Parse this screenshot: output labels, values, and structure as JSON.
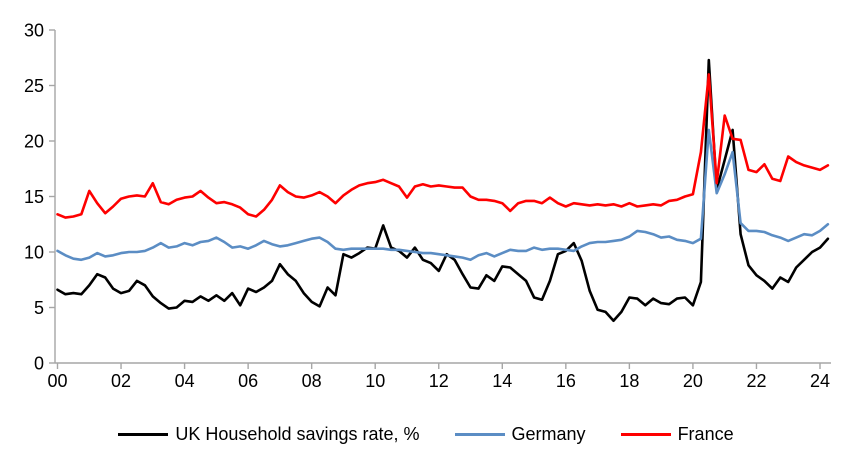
{
  "chart_data": {
    "type": "line",
    "x_start_year": 2000,
    "x_step_years": 0.25,
    "x_tick_labels": [
      "00",
      "02",
      "04",
      "06",
      "08",
      "10",
      "12",
      "14",
      "16",
      "18",
      "20",
      "22",
      "24"
    ],
    "x_tick_interval_years": 2,
    "y_ticks": [
      0,
      5,
      10,
      15,
      20,
      25,
      30
    ],
    "ylim": [
      0,
      30
    ],
    "grid": false,
    "legend_position": "bottom",
    "axis_color": "#a6a6a6",
    "series": [
      {
        "name": "UK Household savings rate, %",
        "color": "#000000",
        "values": [
          6.6,
          6.2,
          6.3,
          6.2,
          7.0,
          8.0,
          7.7,
          6.7,
          6.3,
          6.5,
          7.4,
          7.0,
          6.0,
          5.4,
          4.9,
          5.0,
          5.6,
          5.5,
          6.0,
          5.6,
          6.1,
          5.6,
          6.3,
          5.2,
          6.7,
          6.4,
          6.8,
          7.4,
          8.9,
          8.0,
          7.4,
          6.3,
          5.5,
          5.1,
          6.8,
          6.1,
          9.8,
          9.5,
          9.9,
          10.4,
          10.3,
          12.4,
          10.4,
          10.1,
          9.5,
          10.4,
          9.3,
          9.0,
          8.3,
          9.8,
          9.3,
          8.0,
          6.8,
          6.7,
          7.9,
          7.4,
          8.7,
          8.6,
          8.0,
          7.4,
          5.9,
          5.7,
          7.4,
          9.8,
          10.1,
          10.8,
          9.2,
          6.5,
          4.8,
          4.6,
          3.8,
          4.6,
          5.9,
          5.8,
          5.2,
          5.8,
          5.4,
          5.3,
          5.8,
          5.9,
          5.2,
          7.3,
          27.3,
          15.6,
          18.3,
          21.0,
          11.6,
          8.8,
          7.9,
          7.4,
          6.7,
          7.7,
          7.3,
          8.6,
          9.3,
          10.0,
          10.4,
          11.2
        ]
      },
      {
        "name": "Germany",
        "color": "#5b8dc4",
        "values": [
          10.1,
          9.7,
          9.4,
          9.3,
          9.5,
          9.9,
          9.6,
          9.7,
          9.9,
          10.0,
          10.0,
          10.1,
          10.4,
          10.8,
          10.4,
          10.5,
          10.8,
          10.6,
          10.9,
          11.0,
          11.3,
          10.9,
          10.4,
          10.5,
          10.3,
          10.6,
          11.0,
          10.7,
          10.5,
          10.6,
          10.8,
          11.0,
          11.2,
          11.3,
          10.9,
          10.3,
          10.2,
          10.3,
          10.3,
          10.3,
          10.3,
          10.3,
          10.2,
          10.2,
          10.1,
          10.0,
          9.9,
          9.9,
          9.8,
          9.7,
          9.6,
          9.5,
          9.3,
          9.7,
          9.9,
          9.6,
          9.9,
          10.2,
          10.1,
          10.1,
          10.4,
          10.2,
          10.3,
          10.3,
          10.2,
          10.1,
          10.5,
          10.8,
          10.9,
          10.9,
          11.0,
          11.1,
          11.4,
          11.9,
          11.8,
          11.6,
          11.3,
          11.4,
          11.1,
          11.0,
          10.8,
          11.2,
          21.0,
          15.3,
          17.0,
          19.0,
          12.6,
          11.9,
          11.9,
          11.8,
          11.5,
          11.3,
          11.0,
          11.3,
          11.6,
          11.5,
          11.9,
          12.5
        ]
      },
      {
        "name": "France",
        "color": "#fe0000",
        "values": [
          13.4,
          13.1,
          13.2,
          13.4,
          15.5,
          14.4,
          13.5,
          14.1,
          14.8,
          15.0,
          15.1,
          15.0,
          16.2,
          14.5,
          14.3,
          14.7,
          14.9,
          15.0,
          15.5,
          14.9,
          14.4,
          14.5,
          14.3,
          14.0,
          13.4,
          13.2,
          13.8,
          14.7,
          16.0,
          15.4,
          15.0,
          14.9,
          15.1,
          15.4,
          15.0,
          14.4,
          15.1,
          15.6,
          16.0,
          16.2,
          16.3,
          16.5,
          16.2,
          15.9,
          14.9,
          15.9,
          16.1,
          15.9,
          16.0,
          15.9,
          15.8,
          15.8,
          15.0,
          14.7,
          14.7,
          14.6,
          14.4,
          13.7,
          14.4,
          14.6,
          14.6,
          14.4,
          14.9,
          14.4,
          14.1,
          14.4,
          14.3,
          14.2,
          14.3,
          14.2,
          14.3,
          14.1,
          14.4,
          14.1,
          14.2,
          14.3,
          14.2,
          14.6,
          14.7,
          15.0,
          15.2,
          19.0,
          26.0,
          16.2,
          22.3,
          20.2,
          20.1,
          17.4,
          17.2,
          17.9,
          16.6,
          16.4,
          18.6,
          18.1,
          17.8,
          17.6,
          17.4,
          17.8
        ]
      }
    ]
  }
}
